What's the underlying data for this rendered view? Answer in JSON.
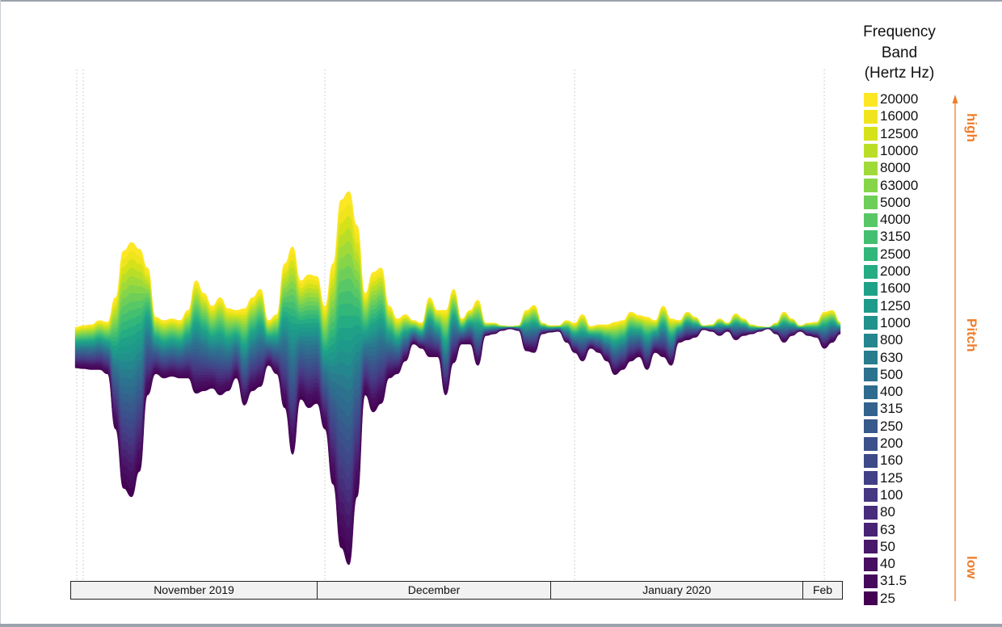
{
  "chart_data": {
    "type": "area",
    "subtype": "streamgraph",
    "title": "",
    "legend": {
      "title_lines": [
        "Frequency",
        "Band",
        "(Hertz Hz)"
      ],
      "placement": "right"
    },
    "pitch_axis": {
      "label": "Pitch",
      "high": "high",
      "low": "low"
    },
    "time_axis": {
      "labels": [
        "November 2019",
        "December",
        "January 2020",
        "Feb"
      ],
      "ticks": [
        "2019-11-01",
        "2019-12-01",
        "2020-01-01",
        "2020-02-01"
      ],
      "range": [
        "2019-10-31",
        "2020-02-03"
      ]
    },
    "grid": "vertical dotted lines at month boundaries",
    "bands": [
      {
        "name": "20000",
        "color": "#fde725"
      },
      {
        "name": "16000",
        "color": "#f0e51c"
      },
      {
        "name": "12500",
        "color": "#d5e21a"
      },
      {
        "name": "10000",
        "color": "#bade28"
      },
      {
        "name": "8000",
        "color": "#a0da39"
      },
      {
        "name": "63000",
        "color": "#86d549"
      },
      {
        "name": "5000",
        "color": "#6ece58"
      },
      {
        "name": "4000",
        "color": "#58c765"
      },
      {
        "name": "3150",
        "color": "#44bf70"
      },
      {
        "name": "2500",
        "color": "#32b67a"
      },
      {
        "name": "2000",
        "color": "#25ac82"
      },
      {
        "name": "1600",
        "color": "#1fa187"
      },
      {
        "name": "1250",
        "color": "#1e9a8a"
      },
      {
        "name": "1000",
        "color": "#21918c"
      },
      {
        "name": "800",
        "color": "#24868e"
      },
      {
        "name": "630",
        "color": "#287c8e"
      },
      {
        "name": "500",
        "color": "#2c728e"
      },
      {
        "name": "400",
        "color": "#2f6b8e"
      },
      {
        "name": "315",
        "color": "#33638d"
      },
      {
        "name": "250",
        "color": "#37598c"
      },
      {
        "name": "200",
        "color": "#3b518b"
      },
      {
        "name": "160",
        "color": "#3e4989"
      },
      {
        "name": "125",
        "color": "#424086"
      },
      {
        "name": "100",
        "color": "#453781"
      },
      {
        "name": "80",
        "color": "#472d7b"
      },
      {
        "name": "63",
        "color": "#482374"
      },
      {
        "name": "50",
        "color": "#48186a"
      },
      {
        "name": "40",
        "color": "#470e61"
      },
      {
        "name": "31.5",
        "color": "#460a5d"
      },
      {
        "name": "25",
        "color": "#440154"
      }
    ],
    "envelope": {
      "x": [
        "2019-10-31",
        "2019-11-01",
        "2019-11-02",
        "2019-11-03",
        "2019-11-04",
        "2019-11-05",
        "2019-11-06",
        "2019-11-07",
        "2019-11-08",
        "2019-11-09",
        "2019-11-10",
        "2019-11-11",
        "2019-11-12",
        "2019-11-13",
        "2019-11-14",
        "2019-11-15",
        "2019-11-16",
        "2019-11-17",
        "2019-11-18",
        "2019-11-19",
        "2019-11-20",
        "2019-11-21",
        "2019-11-22",
        "2019-11-23",
        "2019-11-24",
        "2019-11-25",
        "2019-11-26",
        "2019-11-27",
        "2019-11-28",
        "2019-11-29",
        "2019-11-30",
        "2019-12-01",
        "2019-12-02",
        "2019-12-03",
        "2019-12-04",
        "2019-12-05",
        "2019-12-06",
        "2019-12-07",
        "2019-12-08",
        "2019-12-09",
        "2019-12-10",
        "2019-12-11",
        "2019-12-12",
        "2019-12-13",
        "2019-12-14",
        "2019-12-15",
        "2019-12-16",
        "2019-12-17",
        "2019-12-18",
        "2019-12-19",
        "2019-12-20",
        "2019-12-21",
        "2019-12-22",
        "2019-12-23",
        "2019-12-24",
        "2019-12-25",
        "2019-12-26",
        "2019-12-27",
        "2019-12-28",
        "2019-12-29",
        "2019-12-30",
        "2019-12-31",
        "2020-01-01",
        "2020-01-02",
        "2020-01-03",
        "2020-01-04",
        "2020-01-05",
        "2020-01-06",
        "2020-01-07",
        "2020-01-08",
        "2020-01-09",
        "2020-01-10",
        "2020-01-11",
        "2020-01-12",
        "2020-01-13",
        "2020-01-14",
        "2020-01-15",
        "2020-01-16",
        "2020-01-17",
        "2020-01-18",
        "2020-01-19",
        "2020-01-20",
        "2020-01-21",
        "2020-01-22",
        "2020-01-23",
        "2020-01-24",
        "2020-01-25",
        "2020-01-26",
        "2020-01-27",
        "2020-01-28",
        "2020-01-29",
        "2020-01-30",
        "2020-01-31",
        "2020-02-01",
        "2020-02-02",
        "2020-02-03"
      ],
      "top": [
        0,
        2,
        3,
        8,
        6,
        35,
        90,
        100,
        92,
        70,
        12,
        8,
        10,
        8,
        20,
        55,
        40,
        25,
        35,
        22,
        20,
        22,
        35,
        45,
        8,
        15,
        75,
        95,
        55,
        62,
        60,
        25,
        75,
        150,
        160,
        120,
        40,
        65,
        70,
        25,
        10,
        15,
        8,
        5,
        35,
        20,
        20,
        45,
        10,
        20,
        32,
        5,
        5,
        2,
        1,
        2,
        20,
        26,
        5,
        2,
        2,
        8,
        5,
        15,
        1,
        3,
        3,
        6,
        8,
        18,
        14,
        12,
        8,
        25,
        10,
        8,
        18,
        12,
        2,
        3,
        10,
        5,
        16,
        10,
        3,
        1,
        0,
        5,
        18,
        10,
        2,
        5,
        6,
        18,
        20,
        6
      ],
      "bottom": [
        48,
        49,
        50,
        50,
        55,
        120,
        190,
        200,
        170,
        80,
        55,
        60,
        58,
        60,
        60,
        78,
        75,
        72,
        80,
        75,
        60,
        92,
        75,
        70,
        45,
        55,
        95,
        150,
        85,
        95,
        90,
        120,
        185,
        260,
        280,
        200,
        80,
        100,
        90,
        60,
        55,
        40,
        20,
        25,
        35,
        35,
        80,
        42,
        20,
        20,
        45,
        10,
        8,
        4,
        2,
        4,
        28,
        30,
        8,
        6,
        5,
        18,
        30,
        40,
        25,
        30,
        40,
        56,
        50,
        40,
        35,
        50,
        30,
        35,
        45,
        18,
        15,
        12,
        3,
        5,
        10,
        5,
        15,
        10,
        8,
        5,
        2,
        8,
        18,
        10,
        5,
        10,
        12,
        25,
        18,
        8
      ]
    }
  }
}
